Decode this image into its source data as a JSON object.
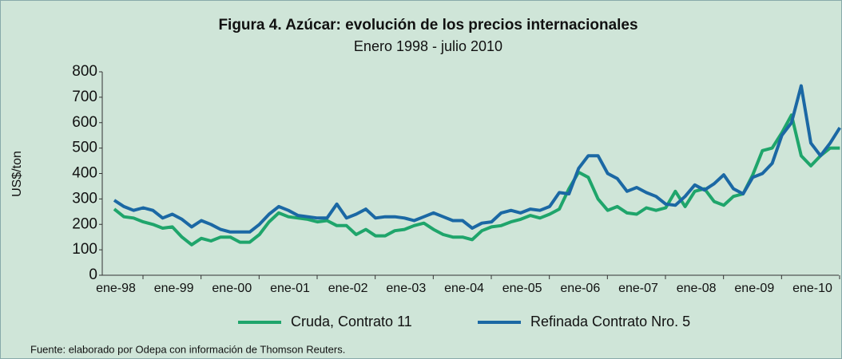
{
  "chart_data": {
    "type": "line",
    "title": "Figura 4. Azúcar: evolución de los precios internacionales",
    "subtitle": "Enero 1998 - julio 2010",
    "y_label": "US$/ton",
    "source": "Fuente: elaborado por Odepa con información de Thomson Reuters.",
    "categories": [
      "ene-98",
      null,
      null,
      null,
      null,
      null,
      "ene-99",
      null,
      null,
      null,
      null,
      null,
      "ene-00",
      null,
      null,
      null,
      null,
      null,
      "ene-01",
      null,
      null,
      null,
      null,
      null,
      "ene-02",
      null,
      null,
      null,
      null,
      null,
      "ene-03",
      null,
      null,
      null,
      null,
      null,
      "ene-04",
      null,
      null,
      null,
      null,
      null,
      "ene-05",
      null,
      null,
      null,
      null,
      null,
      "ene-06",
      null,
      null,
      null,
      null,
      null,
      "ene-07",
      null,
      null,
      null,
      null,
      null,
      "ene-08",
      null,
      null,
      null,
      null,
      null,
      "ene-09",
      null,
      null,
      null,
      null,
      null,
      "ene-10",
      null,
      null,
      null
    ],
    "series": [
      {
        "name": "Cruda, Contrato 11",
        "color": "#1fa56b",
        "values": [
          260,
          230,
          225,
          210,
          200,
          185,
          190,
          150,
          120,
          145,
          135,
          150,
          150,
          130,
          130,
          160,
          210,
          245,
          230,
          225,
          220,
          210,
          215,
          195,
          195,
          160,
          180,
          155,
          155,
          175,
          180,
          195,
          205,
          180,
          160,
          150,
          150,
          140,
          175,
          190,
          195,
          210,
          220,
          235,
          225,
          240,
          260,
          340,
          405,
          385,
          300,
          255,
          270,
          245,
          240,
          265,
          255,
          265,
          330,
          270,
          330,
          340,
          290,
          275,
          310,
          320,
          395,
          490,
          500,
          560,
          630,
          470,
          430,
          470,
          500,
          500
        ]
      },
      {
        "name": "Refinada Contrato Nro. 5",
        "color": "#1b68a4",
        "values": [
          295,
          270,
          255,
          265,
          255,
          225,
          240,
          220,
          190,
          215,
          200,
          180,
          170,
          170,
          170,
          200,
          240,
          270,
          255,
          235,
          230,
          225,
          225,
          280,
          225,
          240,
          260,
          225,
          230,
          230,
          225,
          215,
          230,
          245,
          230,
          215,
          215,
          185,
          205,
          210,
          245,
          255,
          245,
          260,
          255,
          270,
          325,
          320,
          420,
          470,
          470,
          400,
          380,
          330,
          345,
          325,
          310,
          280,
          275,
          310,
          355,
          335,
          360,
          395,
          340,
          320,
          385,
          400,
          440,
          550,
          600,
          745,
          520,
          470,
          520,
          580
        ]
      }
    ],
    "ylim": [
      0,
      800
    ],
    "yticks": [
      0,
      100,
      200,
      300,
      400,
      500,
      600,
      700,
      800
    ],
    "grid": false
  }
}
